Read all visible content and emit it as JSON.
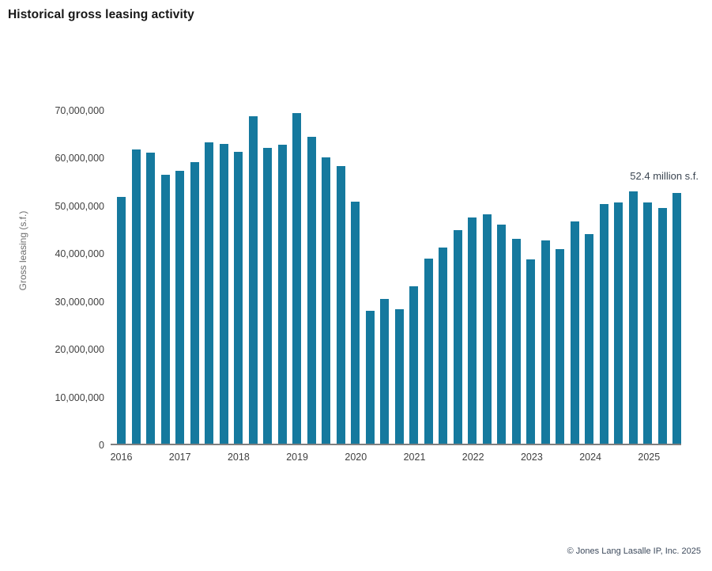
{
  "chart_data": {
    "type": "bar",
    "title": "Historical gross leasing activity",
    "ylabel": "Gross leasing (s.f.)",
    "xlabel": "",
    "unit": "square feet",
    "ylim": [
      0,
      70000000
    ],
    "ytick_step": 10000000,
    "grid": false,
    "legend_position": "none",
    "bar_color": "#15799E",
    "axis_line_color": "#7f7f7f",
    "years": [
      "2016",
      "2017",
      "2018",
      "2019",
      "2020",
      "2021",
      "2022",
      "2023",
      "2024",
      "2025"
    ],
    "points": [
      {
        "label": "Q1 2016",
        "value": 51500000
      },
      {
        "label": "Q2 2016",
        "value": 61500000
      },
      {
        "label": "Q3 2016",
        "value": 60700000
      },
      {
        "label": "Q4 2016",
        "value": 56100000
      },
      {
        "label": "Q1 2017",
        "value": 56900000
      },
      {
        "label": "Q2 2017",
        "value": 58800000
      },
      {
        "label": "Q3 2017",
        "value": 62900000
      },
      {
        "label": "Q4 2017",
        "value": 62500000
      },
      {
        "label": "Q1 2018",
        "value": 61000000
      },
      {
        "label": "Q2 2018",
        "value": 68300000
      },
      {
        "label": "Q3 2018",
        "value": 61800000
      },
      {
        "label": "Q4 2018",
        "value": 62400000
      },
      {
        "label": "Q1 2019",
        "value": 69000000
      },
      {
        "label": "Q2 2019",
        "value": 64000000
      },
      {
        "label": "Q3 2019",
        "value": 59700000
      },
      {
        "label": "Q4 2019",
        "value": 57900000
      },
      {
        "label": "Q1 2020",
        "value": 50600000
      },
      {
        "label": "Q2 2020",
        "value": 27800000
      },
      {
        "label": "Q3 2020",
        "value": 30300000
      },
      {
        "label": "Q4 2020",
        "value": 28000000
      },
      {
        "label": "Q1 2021",
        "value": 32800000
      },
      {
        "label": "Q2 2021",
        "value": 38700000
      },
      {
        "label": "Q3 2021",
        "value": 40900000
      },
      {
        "label": "Q4 2021",
        "value": 44600000
      },
      {
        "label": "Q1 2022",
        "value": 47200000
      },
      {
        "label": "Q2 2022",
        "value": 47900000
      },
      {
        "label": "Q3 2022",
        "value": 45800000
      },
      {
        "label": "Q4 2022",
        "value": 42800000
      },
      {
        "label": "Q1 2023",
        "value": 38400000
      },
      {
        "label": "Q2 2023",
        "value": 42500000
      },
      {
        "label": "Q3 2023",
        "value": 40600000
      },
      {
        "label": "Q4 2023",
        "value": 46400000
      },
      {
        "label": "Q1 2024",
        "value": 43800000
      },
      {
        "label": "Q2 2024",
        "value": 50000000
      },
      {
        "label": "Q3 2024",
        "value": 50300000
      },
      {
        "label": "Q4 2024",
        "value": 52700000
      },
      {
        "label": "Q1 2025",
        "value": 50300000
      },
      {
        "label": "Q2 2025",
        "value": 49200000
      },
      {
        "label": "Q3 2025",
        "value": 52400000
      }
    ],
    "annotation": {
      "text": "52.4 million s.f.",
      "target": "Q3 2025"
    }
  },
  "footer": {
    "copyright": "© Jones Lang Lasalle IP, Inc. 2025"
  }
}
